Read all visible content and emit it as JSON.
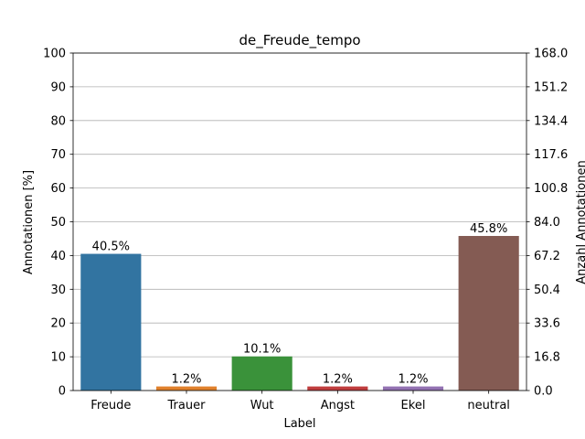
{
  "chart_data": {
    "type": "bar",
    "title": "de_Freude_tempo",
    "xlabel": "Label",
    "ylabel": "Annotationen [%]",
    "ylabel_right": "Anzahl Annotationen",
    "categories": [
      "Freude",
      "Trauer",
      "Wut",
      "Angst",
      "Ekel",
      "neutral"
    ],
    "values": [
      40.5,
      1.2,
      10.1,
      1.2,
      1.2,
      45.8
    ],
    "value_labels": [
      "40.5%",
      "1.2%",
      "10.1%",
      "1.2%",
      "1.2%",
      "45.8%"
    ],
    "colors": [
      "#3274a1",
      "#e1812c",
      "#3a923a",
      "#c03d3e",
      "#9372b2",
      "#845b53"
    ],
    "ylim": [
      0,
      100
    ],
    "yticks": [
      "0",
      "10",
      "20",
      "30",
      "40",
      "50",
      "60",
      "70",
      "80",
      "90",
      "100"
    ],
    "ylim_right": [
      0,
      168
    ],
    "yticks_right": [
      "0.0",
      "16.8",
      "33.6",
      "50.4",
      "67.2",
      "84.0",
      "100.8",
      "117.6",
      "134.4",
      "151.2",
      "168.0"
    ],
    "grid": true
  }
}
